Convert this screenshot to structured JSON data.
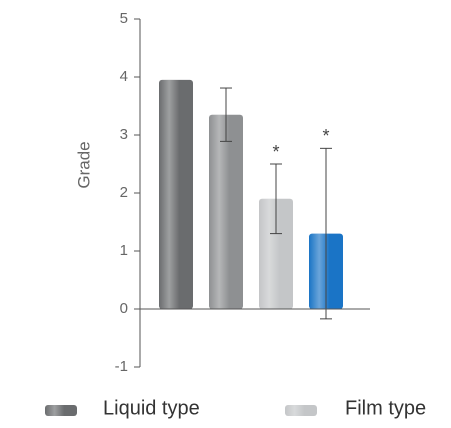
{
  "chart_data": {
    "type": "bar",
    "y_label": "Grade",
    "categories": [
      null,
      null,
      null,
      null
    ],
    "values": [
      3.95,
      3.35,
      1.9,
      1.3
    ],
    "errors": [
      null,
      0.46,
      0.6,
      1.47
    ],
    "markers": [
      null,
      null,
      "*",
      "*"
    ],
    "colors": [
      "#6a6c6e",
      "#8e9092",
      "#c4c6c8",
      "#1a74c6"
    ],
    "ylim": [
      -1,
      5
    ],
    "yticks": [
      -1,
      0,
      1,
      2,
      3,
      4,
      5
    ],
    "legend": [
      {
        "name": "Liquid type",
        "color": "#6a6c6e"
      },
      {
        "name": "Film type",
        "color": "#c4c6c8"
      }
    ]
  }
}
